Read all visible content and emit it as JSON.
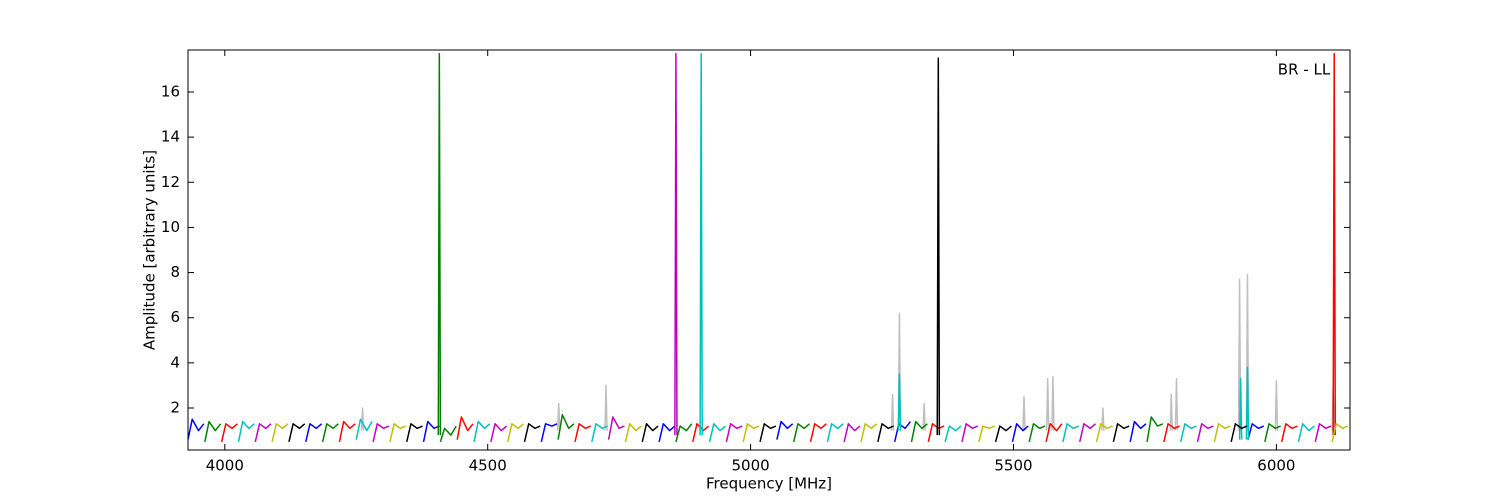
{
  "chart_data": {
    "type": "line",
    "annotation": "BR - LL",
    "x_label": "Frequency [MHz]",
    "y_label": "Amplitude [arbitrary units]",
    "xlim": [
      3930,
      6140
    ],
    "ylim": [
      0.14,
      17.86
    ],
    "xticks": [
      4000,
      4500,
      5000,
      5500,
      6000
    ],
    "yticks": [
      2,
      4,
      6,
      8,
      10,
      12,
      14,
      16
    ],
    "series": [
      {
        "color": "#bfbfbf",
        "x": [
          4260,
          4262,
          4264,
          null,
          4633,
          4635,
          4637,
          null,
          4723,
          4725,
          4727,
          null,
          5268,
          5270,
          5272,
          null,
          5281,
          5283,
          5285,
          null,
          5328,
          5330,
          5332,
          null,
          5518,
          5520,
          5522,
          null,
          5563,
          5565,
          5567,
          null,
          5573,
          5575,
          5577,
          null,
          5668,
          5670,
          5672,
          null,
          5798,
          5800,
          5802,
          null,
          5808,
          5810,
          5812,
          null,
          5928,
          5930,
          5932,
          null,
          5943,
          5945,
          5947,
          null,
          5998,
          6000,
          6002,
          null,
          6106,
          6108,
          6110
        ],
        "values": [
          1.0,
          2.0,
          1.0,
          null,
          1.0,
          2.2,
          1.0,
          null,
          1.0,
          3.0,
          1.0,
          null,
          1.0,
          2.6,
          1.0,
          null,
          1.0,
          6.2,
          1.0,
          null,
          1.0,
          2.2,
          1.0,
          null,
          1.0,
          2.5,
          1.0,
          null,
          1.0,
          3.3,
          1.0,
          null,
          1.0,
          3.4,
          1.0,
          null,
          1.0,
          2.0,
          1.0,
          null,
          1.0,
          2.6,
          1.0,
          null,
          1.0,
          3.3,
          1.0,
          null,
          1.0,
          7.7,
          1.0,
          null,
          1.0,
          7.9,
          1.0,
          null,
          1.0,
          3.2,
          1.0,
          null,
          1.0,
          3.0,
          1.0
        ]
      },
      {
        "color": "#0000ff",
        "x": [
          3930,
          3938,
          3950,
          3960,
          null,
          4154,
          4162,
          4174,
          4184,
          null,
          4378,
          4386,
          4398,
          4408,
          null,
          4602,
          4610,
          4622,
          4632,
          null,
          4826,
          4834,
          4846,
          4856,
          null,
          5050,
          5058,
          5070,
          5080,
          null,
          5274,
          5282,
          5294,
          5304,
          null,
          5498,
          5506,
          5518,
          5528,
          null,
          5722,
          5730,
          5742,
          5752,
          null,
          5946,
          5954,
          5966,
          5976
        ],
        "values": [
          0.6,
          1.5,
          1.0,
          1.3,
          null,
          0.5,
          1.3,
          1.1,
          1.3,
          null,
          0.5,
          1.4,
          1.1,
          1.2,
          null,
          0.5,
          1.3,
          1.2,
          1.3,
          null,
          0.5,
          1.3,
          1.0,
          1.2,
          null,
          0.6,
          1.4,
          1.1,
          1.3,
          null,
          0.5,
          1.3,
          1.1,
          1.4,
          null,
          0.5,
          1.3,
          1.0,
          1.2,
          null,
          0.5,
          1.4,
          1.1,
          1.3,
          null,
          0.6,
          1.3,
          1.1,
          1.2
        ]
      },
      {
        "color": "#008000",
        "x": [
          3962,
          3970,
          3982,
          3992,
          null,
          4186,
          4194,
          4206,
          4216,
          null,
          4410,
          4418,
          4430,
          4440,
          null,
          4634,
          4642,
          4654,
          4664,
          null,
          4858,
          4866,
          4878,
          4888,
          null,
          5082,
          5090,
          5102,
          5112,
          null,
          5306,
          5314,
          5326,
          5336,
          null,
          5530,
          5538,
          5550,
          5560,
          null,
          5754,
          5762,
          5774,
          5784,
          null,
          5978,
          5986,
          5998,
          6008,
          null,
          4406,
          4408,
          4410
        ],
        "values": [
          0.5,
          1.4,
          1.0,
          1.3,
          null,
          0.5,
          1.3,
          1.1,
          1.3,
          null,
          0.5,
          1.1,
          0.8,
          1.2,
          null,
          0.6,
          1.7,
          1.1,
          1.3,
          null,
          0.5,
          1.2,
          1.0,
          1.3,
          null,
          0.5,
          1.3,
          1.1,
          1.3,
          null,
          0.5,
          1.4,
          1.1,
          1.3,
          null,
          0.5,
          1.3,
          1.1,
          1.2,
          null,
          0.5,
          1.6,
          1.2,
          1.3,
          null,
          0.5,
          1.3,
          1.1,
          1.2,
          null,
          0.8,
          17.7,
          0.8
        ]
      },
      {
        "color": "#ff0000",
        "x": [
          3994,
          4002,
          4014,
          4024,
          null,
          4218,
          4226,
          4238,
          4248,
          null,
          4442,
          4450,
          4462,
          4472,
          null,
          4666,
          4674,
          4686,
          4696,
          null,
          4890,
          4898,
          4910,
          4920,
          null,
          5114,
          5122,
          5134,
          5144,
          null,
          5338,
          5346,
          5358,
          5368,
          null,
          5562,
          5570,
          5582,
          5592,
          null,
          5786,
          5794,
          5806,
          5816,
          null,
          6010,
          6018,
          6030,
          6040,
          null,
          6108,
          6110,
          6112
        ],
        "values": [
          0.5,
          1.3,
          1.1,
          1.3,
          null,
          0.5,
          1.4,
          1.1,
          1.3,
          null,
          0.6,
          1.6,
          1.0,
          1.3,
          null,
          0.5,
          1.3,
          1.1,
          1.2,
          null,
          0.5,
          1.3,
          1.0,
          1.2,
          null,
          0.5,
          1.3,
          1.1,
          1.3,
          null,
          0.5,
          1.3,
          1.1,
          1.2,
          null,
          0.5,
          1.3,
          1.0,
          1.3,
          null,
          0.5,
          1.3,
          1.1,
          1.2,
          null,
          0.5,
          1.3,
          1.1,
          1.2,
          null,
          0.8,
          17.7,
          0.8
        ]
      },
      {
        "color": "#00bfbf",
        "x": [
          4026,
          4034,
          4046,
          4056,
          null,
          4250,
          4258,
          4270,
          4280,
          null,
          4474,
          4482,
          4494,
          4504,
          null,
          4698,
          4706,
          4718,
          4728,
          null,
          4922,
          4930,
          4942,
          4952,
          null,
          5146,
          5154,
          5166,
          5176,
          null,
          5370,
          5378,
          5390,
          5400,
          null,
          5594,
          5602,
          5614,
          5624,
          null,
          5818,
          5826,
          5838,
          5848,
          null,
          6042,
          6050,
          6062,
          6072,
          null,
          4904,
          4906,
          4908,
          null,
          5281,
          5283,
          5285,
          null,
          5930,
          5932,
          5934,
          null,
          5943,
          5945,
          5947
        ],
        "values": [
          0.5,
          1.4,
          1.1,
          1.3,
          null,
          0.6,
          1.5,
          1.0,
          1.4,
          null,
          0.5,
          1.4,
          1.1,
          1.3,
          null,
          0.5,
          1.3,
          1.1,
          1.2,
          null,
          0.5,
          1.3,
          1.0,
          1.2,
          null,
          0.5,
          1.3,
          1.1,
          1.3,
          null,
          0.5,
          1.2,
          1.0,
          1.2,
          null,
          0.5,
          1.3,
          1.1,
          1.2,
          null,
          0.5,
          1.3,
          1.1,
          1.2,
          null,
          0.5,
          1.3,
          1.0,
          1.2,
          null,
          0.8,
          17.7,
          0.8,
          null,
          1.0,
          3.5,
          1.0,
          null,
          0.6,
          3.3,
          0.6,
          null,
          0.6,
          3.8,
          0.6
        ]
      },
      {
        "color": "#bf00bf",
        "x": [
          4058,
          4066,
          4078,
          4088,
          null,
          4282,
          4290,
          4302,
          4312,
          null,
          4506,
          4514,
          4526,
          4536,
          null,
          4730,
          4738,
          4750,
          4760,
          null,
          4954,
          4962,
          4974,
          4984,
          null,
          5178,
          5186,
          5198,
          5208,
          null,
          5402,
          5410,
          5422,
          5432,
          null,
          5626,
          5634,
          5646,
          5656,
          null,
          5850,
          5858,
          5870,
          5880,
          null,
          6074,
          6082,
          6094,
          6104,
          null,
          4856,
          4858,
          4860
        ],
        "values": [
          0.5,
          1.3,
          1.1,
          1.3,
          null,
          0.5,
          1.3,
          1.1,
          1.2,
          null,
          0.5,
          1.3,
          1.0,
          1.2,
          null,
          0.6,
          1.6,
          1.1,
          1.2,
          null,
          0.5,
          1.3,
          1.1,
          1.2,
          null,
          0.5,
          1.3,
          1.0,
          1.2,
          null,
          0.5,
          1.3,
          1.1,
          1.2,
          null,
          0.5,
          1.3,
          1.1,
          1.3,
          null,
          0.5,
          1.3,
          1.1,
          1.2,
          null,
          0.5,
          1.3,
          1.1,
          1.2,
          null,
          0.8,
          17.7,
          0.8
        ]
      },
      {
        "color": "#bfbf00",
        "x": [
          4090,
          4098,
          4110,
          4120,
          null,
          4314,
          4322,
          4334,
          4344,
          null,
          4538,
          4546,
          4558,
          4568,
          null,
          4762,
          4770,
          4782,
          4792,
          null,
          4986,
          4994,
          5006,
          5016,
          null,
          5210,
          5218,
          5230,
          5240,
          null,
          5434,
          5442,
          5454,
          5464,
          null,
          5658,
          5666,
          5678,
          5688,
          null,
          5882,
          5890,
          5902,
          5912,
          null,
          6106,
          6114,
          6126,
          6136
        ],
        "values": [
          0.5,
          1.3,
          1.1,
          1.3,
          null,
          0.5,
          1.3,
          1.1,
          1.2,
          null,
          0.5,
          1.3,
          1.1,
          1.3,
          null,
          0.5,
          1.3,
          1.0,
          1.2,
          null,
          0.5,
          1.3,
          1.1,
          1.2,
          null,
          0.5,
          1.3,
          1.1,
          1.3,
          null,
          0.5,
          1.2,
          1.1,
          1.2,
          null,
          0.5,
          1.3,
          1.1,
          1.2,
          null,
          0.5,
          1.3,
          1.1,
          1.2,
          null,
          0.5,
          1.3,
          1.1,
          1.2
        ]
      },
      {
        "color": "#000000",
        "x": [
          4122,
          4130,
          4142,
          4152,
          null,
          4346,
          4354,
          4366,
          4376,
          null,
          4570,
          4578,
          4590,
          4600,
          null,
          4794,
          4802,
          4814,
          4824,
          null,
          5018,
          5026,
          5038,
          5048,
          null,
          5242,
          5250,
          5262,
          5272,
          null,
          5466,
          5474,
          5486,
          5496,
          null,
          5690,
          5698,
          5710,
          5720,
          null,
          5914,
          5922,
          5934,
          5944,
          null,
          5355,
          5357,
          5359
        ],
        "values": [
          0.5,
          1.3,
          1.1,
          1.3,
          null,
          0.5,
          1.3,
          1.1,
          1.2,
          null,
          0.5,
          1.3,
          1.1,
          1.2,
          null,
          0.5,
          1.3,
          1.0,
          1.2,
          null,
          0.5,
          1.3,
          1.1,
          1.2,
          null,
          0.5,
          1.3,
          1.1,
          1.2,
          null,
          0.5,
          1.2,
          1.0,
          1.2,
          null,
          0.5,
          1.3,
          1.1,
          1.2,
          null,
          0.5,
          1.3,
          1.1,
          1.2,
          null,
          0.8,
          17.5,
          0.8
        ]
      }
    ]
  }
}
